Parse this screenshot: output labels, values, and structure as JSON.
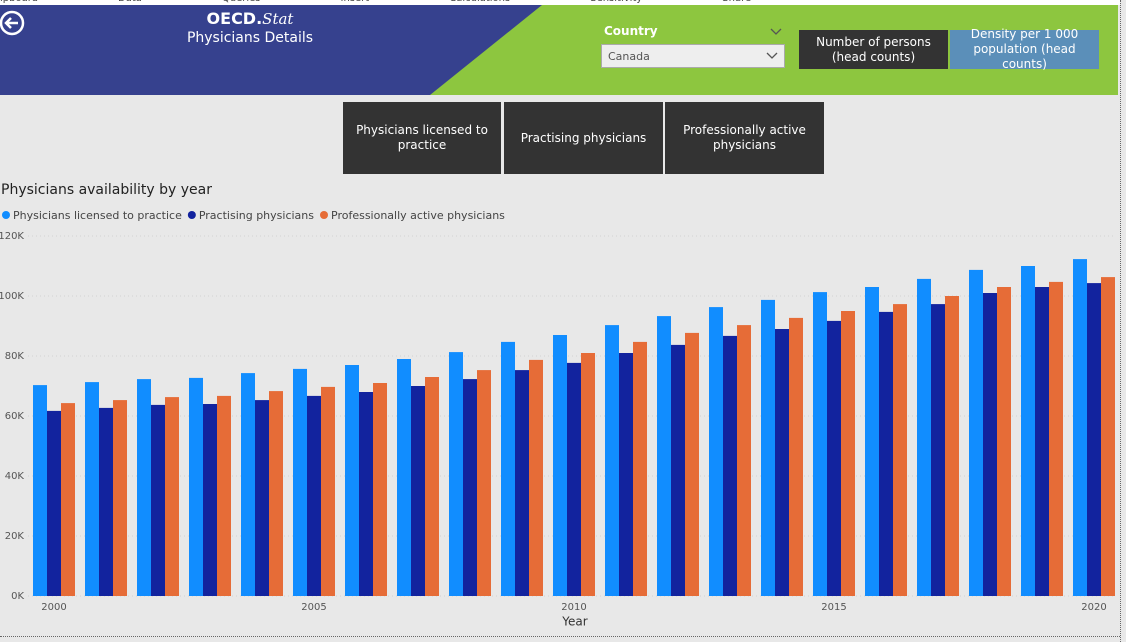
{
  "ribbon": [
    "ipboard",
    "Data",
    "Queries",
    "Insert",
    "Calculations",
    "Sensitivity",
    "Share"
  ],
  "header": {
    "logo": {
      "main": "OECD.",
      "sub": "Stat"
    },
    "title": "Physicians Details"
  },
  "slicer": {
    "label": "Country",
    "value": "Canada"
  },
  "measure_buttons": [
    "Number of persons (head counts)",
    "Density per 1 000 population (head counts)"
  ],
  "category_buttons": [
    "Physicians licensed to practice",
    "Practising physicians",
    "Professionally active physicians"
  ],
  "chart_data": {
    "type": "bar",
    "title": "Physicians availability by year",
    "x_label": "Year",
    "x": [
      2000,
      2001,
      2002,
      2003,
      2004,
      2005,
      2006,
      2007,
      2008,
      2009,
      2010,
      2011,
      2012,
      2013,
      2014,
      2015,
      2016,
      2017,
      2018,
      2019,
      2020
    ],
    "xlim": [
      1999.5,
      2020.5
    ],
    "xticks": [
      2000,
      2005,
      2010,
      2015,
      2020
    ],
    "ylim": [
      0,
      120000
    ],
    "yticks": [
      {
        "value": 0,
        "label": "0K"
      },
      {
        "value": 20000,
        "label": "20K"
      },
      {
        "value": 40000,
        "label": "40K"
      },
      {
        "value": 60000,
        "label": "60K"
      },
      {
        "value": 80000,
        "label": "80K"
      },
      {
        "value": 100000,
        "label": "100K"
      },
      {
        "value": 120000,
        "label": "120K"
      }
    ],
    "grid": true,
    "legend": "top-left",
    "series": [
      {
        "name": "Physicians licensed to practice",
        "color": "#118dff",
        "values": [
          70300,
          71300,
          72300,
          72700,
          74300,
          75700,
          77000,
          79000,
          81300,
          84700,
          87000,
          90300,
          93300,
          96300,
          98700,
          101300,
          103000,
          105700,
          108700,
          110000,
          112300
        ]
      },
      {
        "name": "Practising physicians",
        "color": "#12239e",
        "values": [
          61700,
          62700,
          63700,
          64000,
          65300,
          66700,
          68000,
          70000,
          72300,
          75300,
          77700,
          81000,
          83700,
          86700,
          89000,
          91700,
          94700,
          97300,
          101000,
          103000,
          104300
        ]
      },
      {
        "name": "Professionally active physicians",
        "color": "#e66c37",
        "values": [
          64300,
          65300,
          66300,
          66700,
          68300,
          69700,
          71000,
          73000,
          75300,
          78700,
          81000,
          84700,
          87700,
          90300,
          92700,
          95000,
          97300,
          100000,
          103000,
          104700,
          106300
        ]
      }
    ]
  }
}
